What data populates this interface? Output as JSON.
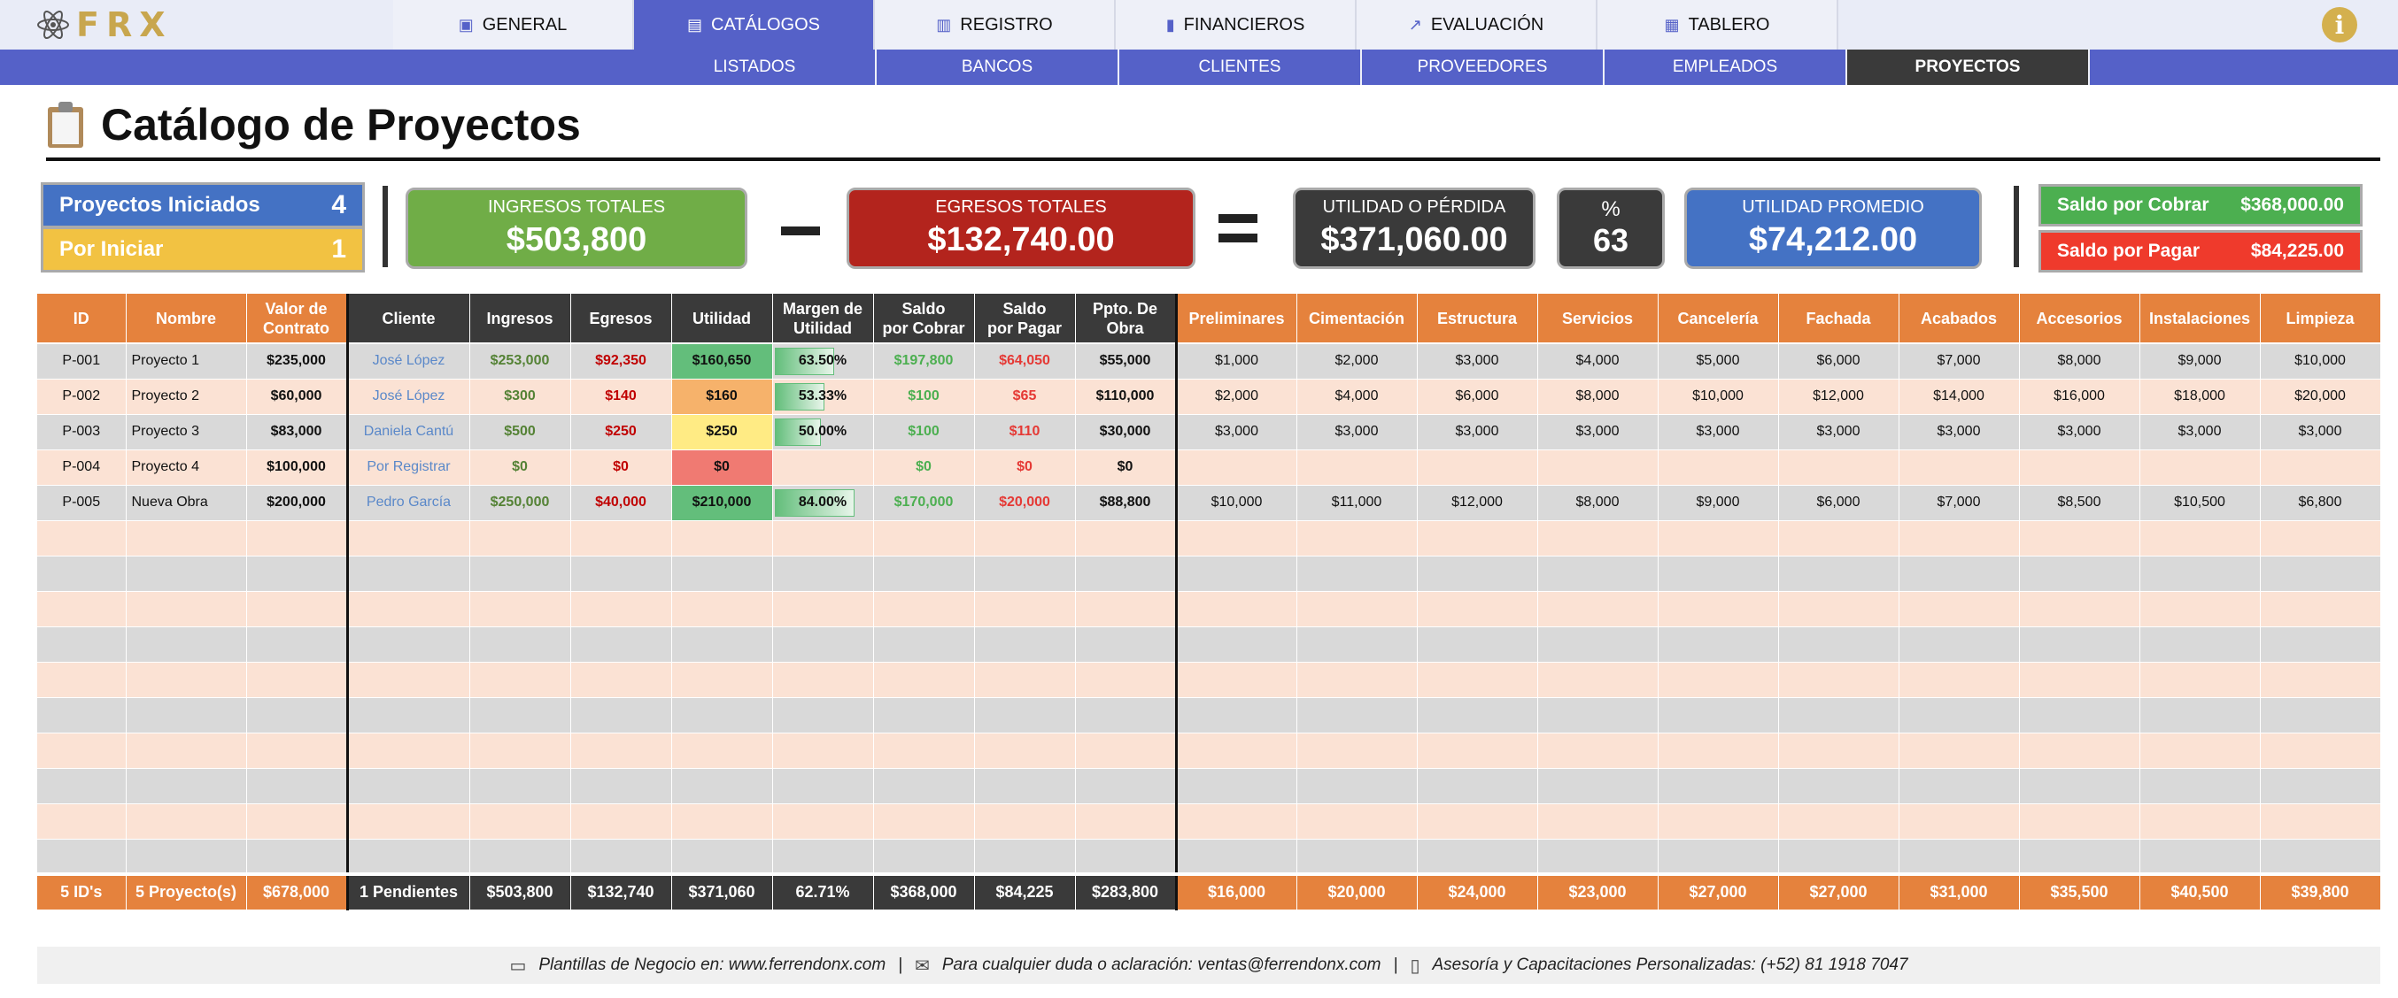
{
  "app": {
    "logo_text": "FRX"
  },
  "nav": {
    "tabs": [
      {
        "label": "GENERAL",
        "icon": "info-card-icon",
        "glyph": "▣"
      },
      {
        "label": "CATÁLOGOS",
        "icon": "document-icon",
        "glyph": "▤"
      },
      {
        "label": "REGISTRO",
        "icon": "money-icon",
        "glyph": "▥"
      },
      {
        "label": "FINANCIEROS",
        "icon": "bar-chart-icon",
        "glyph": "▮"
      },
      {
        "label": "EVALUACIÓN",
        "icon": "trend-icon",
        "glyph": "↗"
      },
      {
        "label": "TABLERO",
        "icon": "board-icon",
        "glyph": "▦"
      }
    ],
    "active_tab": "CATÁLOGOS",
    "subtabs": [
      "LISTADOS",
      "BANCOS",
      "CLIENTES",
      "PROVEEDORES",
      "EMPLEADOS",
      "PROYECTOS"
    ],
    "active_subtab": "PROYECTOS",
    "info_glyph": "i"
  },
  "page": {
    "title": "Catálogo de Proyectos"
  },
  "kpis": {
    "iniciados": {
      "label": "Proyectos Iniciados",
      "value": "4"
    },
    "por_iniciar": {
      "label": "Por Iniciar",
      "value": "1"
    },
    "ingresos": {
      "label": "INGRESOS TOTALES",
      "value": "$503,800"
    },
    "egresos": {
      "label": "EGRESOS TOTALES",
      "value": "$132,740.00"
    },
    "utilidad": {
      "label": "UTILIDAD O PÉRDIDA",
      "value": "$371,060.00"
    },
    "porcentaje": {
      "label": "%",
      "value": "63"
    },
    "promedio": {
      "label": "UTILIDAD PROMEDIO",
      "value": "$74,212.00"
    },
    "saldo_cobrar": {
      "label": "Saldo por Cobrar",
      "value": "$368,000.00"
    },
    "saldo_pagar": {
      "label": "Saldo por Pagar",
      "value": "$84,225.00"
    }
  },
  "table": {
    "headers": {
      "id": "ID",
      "nombre": "Nombre",
      "valor_1": "Valor de",
      "valor_2": "Contrato",
      "cliente": "Cliente",
      "ingresos": "Ingresos",
      "egresos": "Egresos",
      "utilidad": "Utilidad",
      "margen_1": "Margen de",
      "margen_2": "Utilidad",
      "scob_1": "Saldo",
      "scob_2": "por Cobrar",
      "spag_1": "Saldo",
      "spag_2": "por Pagar",
      "ppto_1": "Ppto. De",
      "ppto_2": "Obra",
      "categories": [
        "Preliminares",
        "Cimentación",
        "Estructura",
        "Servicios",
        "Cancelería",
        "Fachada",
        "Acabados",
        "Accesorios",
        "Instalaciones",
        "Limpieza"
      ]
    },
    "rows": [
      {
        "id": "P-001",
        "nombre": "Proyecto 1",
        "valor": "$235,000",
        "cliente": "José López",
        "ingresos": "$253,000",
        "egresos": "$92,350",
        "utilidad": "$160,650",
        "margen": "63.50%",
        "margen_value": 63.5,
        "saldo_cobrar": "$197,800",
        "saldo_pagar": "$64,050",
        "ppto": "$55,000",
        "cats": [
          "$1,000",
          "$2,000",
          "$3,000",
          "$4,000",
          "$5,000",
          "$6,000",
          "$7,000",
          "$8,000",
          "$9,000",
          "$10,000"
        ]
      },
      {
        "id": "P-002",
        "nombre": "Proyecto 2",
        "valor": "$60,000",
        "cliente": "José López",
        "ingresos": "$300",
        "egresos": "$140",
        "utilidad": "$160",
        "margen": "53.33%",
        "margen_value": 53.33,
        "saldo_cobrar": "$100",
        "saldo_pagar": "$65",
        "ppto": "$110,000",
        "cats": [
          "$2,000",
          "$4,000",
          "$6,000",
          "$8,000",
          "$10,000",
          "$12,000",
          "$14,000",
          "$16,000",
          "$18,000",
          "$20,000"
        ]
      },
      {
        "id": "P-003",
        "nombre": "Proyecto 3",
        "valor": "$83,000",
        "cliente": "Daniela Cantú",
        "ingresos": "$500",
        "egresos": "$250",
        "utilidad": "$250",
        "margen": "50.00%",
        "margen_value": 50,
        "saldo_cobrar": "$100",
        "saldo_pagar": "$110",
        "ppto": "$30,000",
        "cats": [
          "$3,000",
          "$3,000",
          "$3,000",
          "$3,000",
          "$3,000",
          "$3,000",
          "$3,000",
          "$3,000",
          "$3,000",
          "$3,000"
        ]
      },
      {
        "id": "P-004",
        "nombre": "Proyecto 4",
        "valor": "$100,000",
        "cliente": "Por Registrar",
        "ingresos": "$0",
        "egresos": "$0",
        "utilidad": "$0",
        "margen": "",
        "margen_value": 0,
        "saldo_cobrar": "$0",
        "saldo_pagar": "$0",
        "ppto": "$0",
        "cats": [
          "",
          "",
          "",
          "",
          "",
          "",
          "",
          "",
          "",
          ""
        ]
      },
      {
        "id": "P-005",
        "nombre": "Nueva Obra",
        "valor": "$200,000",
        "cliente": "Pedro García",
        "ingresos": "$250,000",
        "egresos": "$40,000",
        "utilidad": "$210,000",
        "margen": "84.00%",
        "margen_value": 84,
        "saldo_cobrar": "$170,000",
        "saldo_pagar": "$20,000",
        "ppto": "$88,800",
        "cats": [
          "$10,000",
          "$11,000",
          "$12,000",
          "$8,000",
          "$9,000",
          "$6,000",
          "$7,000",
          "$8,500",
          "$10,500",
          "$6,800"
        ]
      }
    ],
    "totals": {
      "id": "5 ID's",
      "nombre": "5 Proyecto(s)",
      "valor": "$678,000",
      "cliente": "1 Pendientes",
      "ingresos": "$503,800",
      "egresos": "$132,740",
      "utilidad": "$371,060",
      "margen": "62.71%",
      "saldo_cobrar": "$368,000",
      "saldo_pagar": "$84,225",
      "ppto": "$283,800",
      "cats": [
        "$16,000",
        "$20,000",
        "$24,000",
        "$23,000",
        "$27,000",
        "$27,000",
        "$31,000",
        "$35,500",
        "$40,500",
        "$39,800"
      ]
    }
  },
  "footer": {
    "web": "Plantillas de Negocio en: www.ferrendonx.com",
    "sep": "|",
    "email": "Para cualquier duda o aclaración: ventas@ferrendonx.com",
    "phone": "Asesoría y Capacitaciones Personalizadas: (+52) 81 1918 7047"
  }
}
